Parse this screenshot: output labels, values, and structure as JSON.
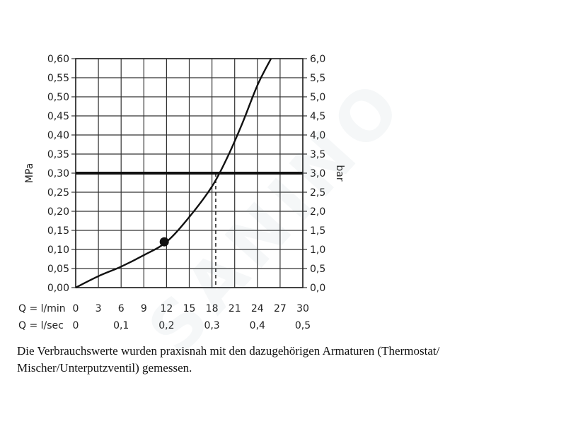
{
  "chart_data": {
    "type": "line",
    "y_left_label": "MPa",
    "y_right_label": "bar",
    "y_left_ticks": [
      "0,00",
      "0,05",
      "0,10",
      "0,15",
      "0,20",
      "0,25",
      "0,30",
      "0,35",
      "0,40",
      "0,45",
      "0,50",
      "0,55",
      "0,60"
    ],
    "y_right_ticks": [
      "0,0",
      "0,5",
      "1,0",
      "1,5",
      "2,0",
      "2,5",
      "3,0",
      "3,5",
      "4,0",
      "4,5",
      "5,0",
      "5,5",
      "6,0"
    ],
    "ylim": [
      0,
      0.6
    ],
    "xlim": [
      0,
      30
    ],
    "x_row1_label": "Q = l/min",
    "x_row1_ticks": [
      "0",
      "3",
      "6",
      "9",
      "12",
      "15",
      "18",
      "21",
      "24",
      "27",
      "30"
    ],
    "x_row2_label": "Q = l/sec",
    "x_row2_ticks": [
      "0",
      "0,1",
      "0,2",
      "0,3",
      "0,4",
      "0,5"
    ],
    "grid": true,
    "series": [
      {
        "x": [
          0,
          3,
          6,
          9,
          12,
          15,
          18,
          20,
          22,
          24,
          25.8
        ],
        "y": [
          0,
          0.03,
          0.055,
          0.085,
          0.12,
          0.185,
          0.265,
          0.34,
          0.43,
          0.53,
          0.6
        ]
      }
    ],
    "reference_line": {
      "y": 0.3
    },
    "marker": {
      "x": 11.7,
      "y": 0.12
    },
    "dashed_drop": {
      "x": 18.5,
      "y": 0.3
    }
  },
  "caption": "Die Verbrauchswerte wurden praxisnah mit den dazugehörigen Armaturen (Thermostat/ Mischer/Unterputzventil) gemessen.",
  "watermark": "SANINO"
}
